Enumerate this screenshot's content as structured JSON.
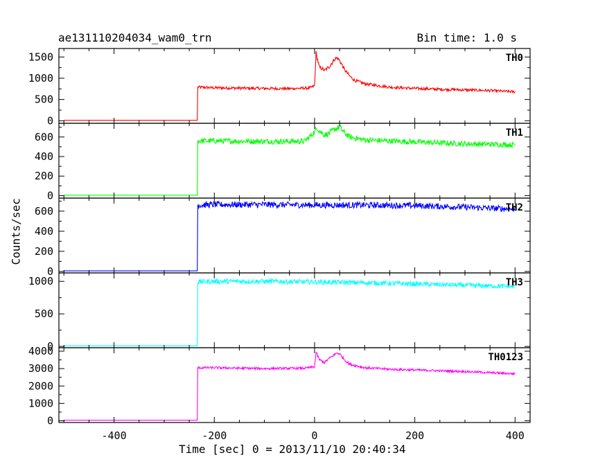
{
  "header": {
    "title_left": "ae131110204034_wam0_trn",
    "title_right": "Bin time: 1.0 s"
  },
  "chart_data": {
    "type": "line",
    "xlabel": "Time [sec] 0 = 2013/11/10 20:40:34",
    "ylabel": "Counts/sec",
    "xlim": [
      -510,
      430
    ],
    "x_ticks": [
      -400,
      -200,
      0,
      200,
      400
    ],
    "grid": false,
    "panels": [
      {
        "name": "TH0",
        "color": "#ff0000",
        "ylim": [
          -60,
          1700
        ],
        "y_ticks": [
          0,
          500,
          1000,
          1500
        ],
        "series": {
          "x": [
            -500,
            -234,
            -233,
            -200,
            -100,
            -50,
            -10,
            0,
            3,
            5,
            10,
            15,
            20,
            30,
            40,
            45,
            50,
            60,
            70,
            80,
            100,
            150,
            200,
            250,
            300,
            350,
            400
          ],
          "y": [
            10,
            10,
            790,
            775,
            760,
            755,
            770,
            820,
            1600,
            1480,
            1250,
            1230,
            1180,
            1280,
            1450,
            1480,
            1420,
            1200,
            1050,
            950,
            870,
            790,
            760,
            740,
            725,
            710,
            680
          ]
        }
      },
      {
        "name": "TH1",
        "color": "#00ff00",
        "ylim": [
          -25,
          740
        ],
        "y_ticks": [
          0,
          200,
          400,
          600
        ],
        "series": {
          "x": [
            -500,
            -234,
            -233,
            -200,
            -100,
            -20,
            0,
            5,
            10,
            20,
            30,
            40,
            50,
            60,
            70,
            100,
            200,
            300,
            400
          ],
          "y": [
            5,
            5,
            560,
            560,
            555,
            555,
            650,
            700,
            660,
            620,
            640,
            680,
            700,
            640,
            600,
            570,
            550,
            530,
            520
          ]
        }
      },
      {
        "name": "TH2",
        "color": "#0000ff",
        "ylim": [
          -15,
          730
        ],
        "y_ticks": [
          0,
          200,
          400,
          600
        ],
        "series": {
          "x": [
            -500,
            -234,
            -233,
            -200,
            -100,
            0,
            100,
            200,
            300,
            400
          ],
          "y": [
            5,
            5,
            660,
            665,
            665,
            660,
            660,
            655,
            640,
            620
          ]
        }
      },
      {
        "name": "TH3",
        "color": "#00ffff",
        "ylim": [
          -20,
          1130
        ],
        "y_ticks": [
          0,
          500,
          1000
        ],
        "series": {
          "x": [
            -500,
            -234,
            -233,
            -200,
            -100,
            0,
            100,
            200,
            300,
            400
          ],
          "y": [
            10,
            10,
            990,
            1000,
            1000,
            990,
            980,
            960,
            940,
            920
          ]
        }
      },
      {
        "name": "TH0123",
        "color": "#ff00ff",
        "ylim": [
          -100,
          4200
        ],
        "y_ticks": [
          0,
          1000,
          2000,
          3000,
          4000
        ],
        "series": {
          "x": [
            -500,
            -234,
            -233,
            -200,
            -100,
            -20,
            0,
            3,
            5,
            10,
            20,
            30,
            40,
            45,
            50,
            60,
            70,
            100,
            150,
            200,
            300,
            400
          ],
          "y": [
            30,
            30,
            3050,
            3050,
            3000,
            3020,
            3100,
            3950,
            3800,
            3500,
            3350,
            3600,
            3800,
            3900,
            3850,
            3500,
            3250,
            3050,
            2960,
            2920,
            2830,
            2700
          ]
        }
      }
    ]
  }
}
